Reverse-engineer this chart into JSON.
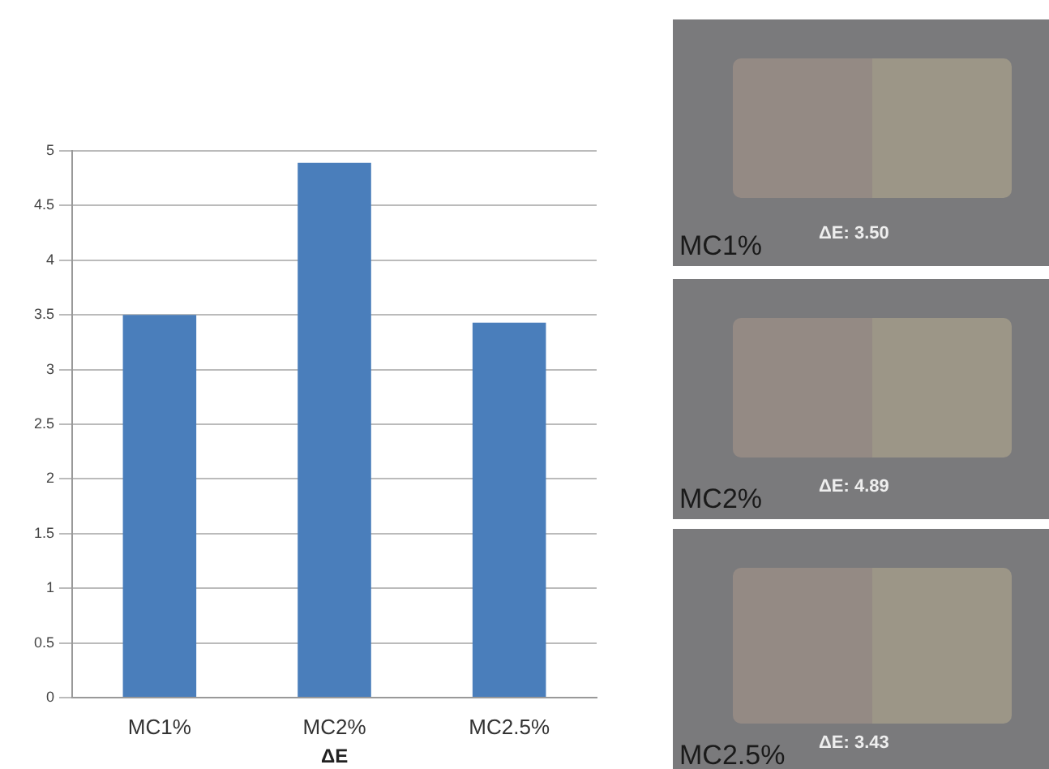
{
  "chart_data": [
    {
      "type": "bar",
      "xlabel": "ΔE",
      "categories": [
        "MC1%",
        "MC2%",
        "MC2.5%"
      ],
      "values": [
        3.5,
        4.89,
        3.43
      ],
      "color": "#4a7ebb",
      "ylim": [
        0,
        5
      ],
      "yticks": [
        0,
        0.5,
        1,
        1.5,
        2,
        2.5,
        3,
        3.5,
        4,
        4.5,
        5
      ],
      "grid": "y",
      "legend": false
    },
    {
      "type": "other",
      "annotations": [
        "MC1%",
        "ΔE: 3.50",
        "MC2%",
        "ΔE: 4.89",
        "MC2.5%",
        "ΔE: 3.43"
      ]
    }
  ]
}
